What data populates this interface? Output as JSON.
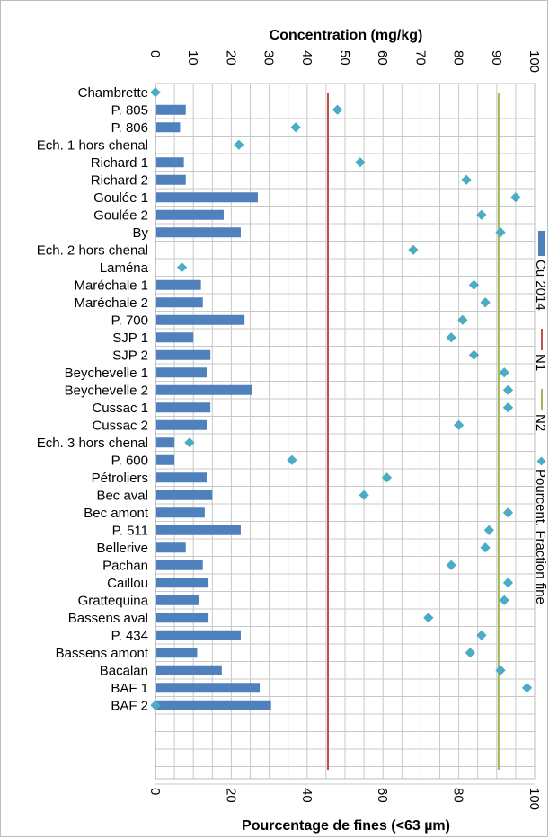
{
  "chart_data": {
    "type": "bar",
    "orientation": "horizontal",
    "categories": [
      "Chambrette",
      "P. 805",
      "P. 806",
      "Ech. 1 hors chenal",
      "Richard 1",
      "Richard 2",
      "Goulée 1",
      "Goulée 2",
      "By",
      "Ech. 2 hors chenal",
      "Laména",
      "Maréchale 1",
      "Maréchale 2",
      "P. 700",
      "SJP 1",
      "SJP 2",
      "Beychevelle 1",
      "Beychevelle 2",
      "Cussac 1",
      "Cussac 2",
      "Ech. 3 hors chenal",
      "P. 600",
      "Pétroliers",
      "Bec aval",
      "Bec amont",
      "P. 511",
      "Bellerive",
      "Pachan",
      "Caillou",
      "Grattequina",
      "Bassens aval",
      "P. 434",
      "Bassens amont",
      "Bacalan",
      "BAF 1",
      "BAF 2"
    ],
    "top_axis": {
      "label": "Concentration (mg/kg)",
      "range": [
        0,
        100
      ],
      "ticks": [
        "0",
        "10",
        "20",
        "30",
        "40",
        "50",
        "60",
        "70",
        "80",
        "90",
        "100"
      ]
    },
    "bottom_axis": {
      "label": "Pourcentage de fines (<63 µm)",
      "range": [
        0,
        100
      ],
      "ticks": [
        "0",
        "20",
        "40",
        "60",
        "80",
        "100"
      ]
    },
    "series": [
      {
        "name": "Cu 2014",
        "kind": "bar",
        "axis": "top",
        "color": "#4f81bd",
        "values": [
          null,
          8,
          6.5,
          null,
          7.5,
          8,
          27,
          18,
          22.5,
          null,
          null,
          12,
          12.5,
          23.5,
          10,
          14.5,
          13.5,
          25.5,
          14.5,
          13.5,
          5,
          5,
          13.5,
          15,
          13,
          22.5,
          8,
          12.5,
          14,
          11.5,
          14,
          22.5,
          11,
          17.5,
          27.5,
          30.5
        ]
      },
      {
        "name": "N1",
        "kind": "reference-line",
        "axis": "top",
        "color": "#c0504d",
        "value": 45.5
      },
      {
        "name": "N2",
        "kind": "reference-line",
        "axis": "top",
        "color": "#9bbb59",
        "value": 90.5
      },
      {
        "name": "Pourcent. Fraction fine",
        "kind": "scatter",
        "axis": "bottom",
        "color": "#4bacc6",
        "values": [
          0,
          48,
          37,
          22,
          54,
          82,
          95,
          86,
          91,
          68,
          7,
          84,
          87,
          81,
          78,
          84,
          92,
          93,
          93,
          80,
          9,
          36,
          61,
          55,
          93,
          88,
          87,
          78,
          93,
          92,
          72,
          86,
          83,
          91,
          98,
          0
        ]
      }
    ],
    "grid": true,
    "legend": {
      "placement": "right",
      "orientation": "vertical"
    }
  }
}
